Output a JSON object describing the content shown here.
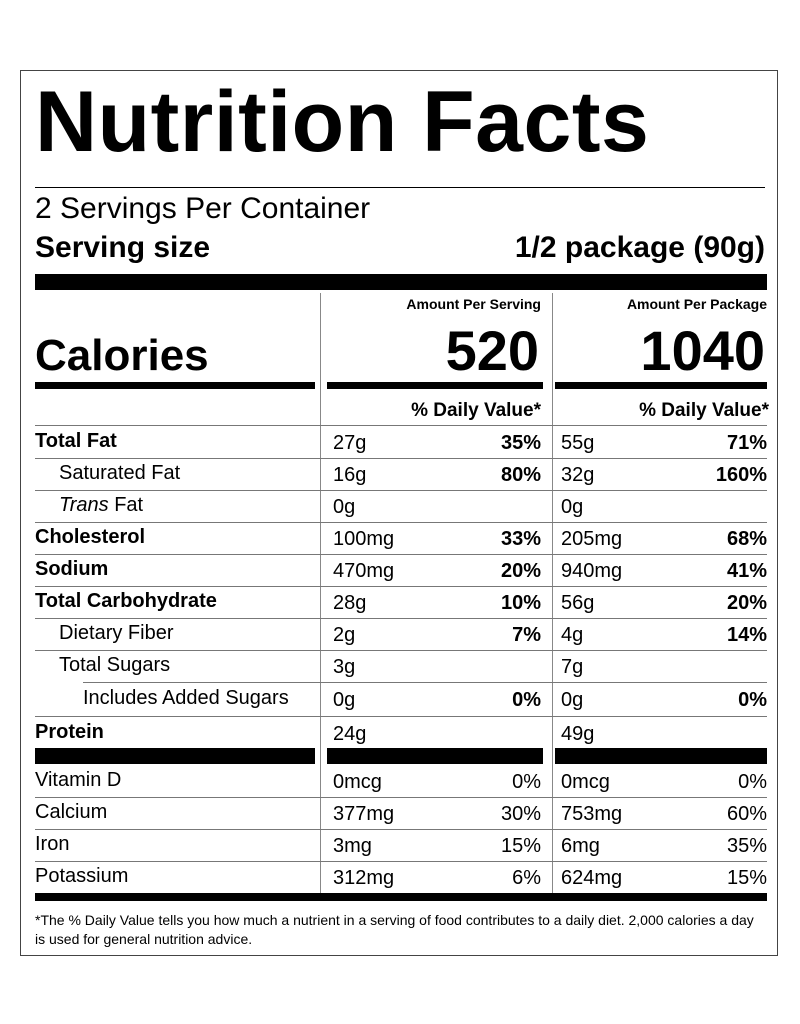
{
  "header": {
    "title": "Nutrition Facts",
    "servings": "2 Servings Per Container",
    "serving_size_label": "Serving size",
    "serving_size_value": "1/2 package (90g)"
  },
  "calories": {
    "label": "Calories",
    "per_serving_head": "Amount Per Serving",
    "per_package_head": "Amount Per Package",
    "per_serving": "520",
    "per_package": "1040",
    "dv_head": "% Daily Value*"
  },
  "nutrients": [
    {
      "name": "Total Fat",
      "s_amt": "27g",
      "s_dv": "35%",
      "p_amt": "55g",
      "p_dv": "71%"
    },
    {
      "name": "Saturated Fat",
      "s_amt": "16g",
      "s_dv": "80%",
      "p_amt": "32g",
      "p_dv": "160%"
    },
    {
      "name_italic": "Trans",
      "name": " Fat",
      "s_amt": "0g",
      "s_dv": "",
      "p_amt": "0g",
      "p_dv": ""
    },
    {
      "name": "Cholesterol",
      "s_amt": "100mg",
      "s_dv": "33%",
      "p_amt": "205mg",
      "p_dv": "68%"
    },
    {
      "name": "Sodium",
      "s_amt": "470mg",
      "s_dv": "20%",
      "p_amt": "940mg",
      "p_dv": "41%"
    },
    {
      "name": "Total Carbohydrate",
      "s_amt": "28g",
      "s_dv": "10%",
      "p_amt": "56g",
      "p_dv": "20%"
    },
    {
      "name": "Dietary Fiber",
      "s_amt": "2g",
      "s_dv": "7%",
      "p_amt": "4g",
      "p_dv": "14%"
    },
    {
      "name": "Total Sugars",
      "s_amt": "3g",
      "s_dv": "",
      "p_amt": "7g",
      "p_dv": ""
    },
    {
      "name": "Includes Added Sugars",
      "s_amt": "0g",
      "s_dv": "0%",
      "p_amt": "0g",
      "p_dv": "0%"
    },
    {
      "name": "Protein",
      "s_amt": "24g",
      "s_dv": "",
      "p_amt": "49g",
      "p_dv": ""
    }
  ],
  "vitamins": [
    {
      "name": "Vitamin D",
      "s_amt": "0mcg",
      "s_dv": "0%",
      "p_amt": "0mcg",
      "p_dv": "0%"
    },
    {
      "name": "Calcium",
      "s_amt": "377mg",
      "s_dv": "30%",
      "p_amt": "753mg",
      "p_dv": "60%"
    },
    {
      "name": "Iron",
      "s_amt": "3mg",
      "s_dv": "15%",
      "p_amt": "6mg",
      "p_dv": "35%"
    },
    {
      "name": "Potassium",
      "s_amt": "312mg",
      "s_dv": "6%",
      "p_amt": "624mg",
      "p_dv": "15%"
    }
  ],
  "footnote": "*The % Daily Value tells you how much a nutrient in a serving of food contributes to a daily diet. 2,000 calories a day is used for general nutrition advice."
}
